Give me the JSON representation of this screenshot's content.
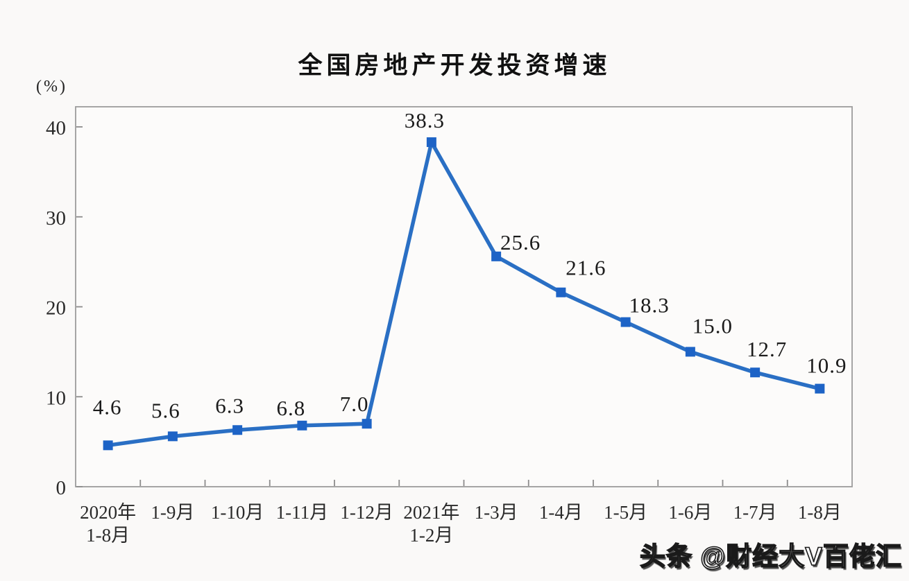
{
  "page": {
    "title": "全国房地产开发投资增速",
    "y_axis_unit_label": "(%)",
    "watermark": "头条 @财经大V百佬汇"
  },
  "colors": {
    "series_line": "#2a6fc4",
    "marker_fill": "#1d63c6",
    "plot_border": "#9c9c9c",
    "tick": "#8c8c8c",
    "axis_text": "#2a2a2a",
    "data_label_text": "#1b1b1b",
    "background": "#faf9f8",
    "plot_background": "#fcfbfa",
    "title_text": "#111111",
    "watermark_fill": "#ffffff",
    "watermark_outline": "#1a1a1a"
  },
  "chart_data": {
    "type": "line",
    "title": "全国房地产开发投资增速",
    "ylabel": "(%)",
    "xlabel": "",
    "ylim": [
      0,
      40
    ],
    "yticks": [
      0,
      10,
      20,
      30,
      40
    ],
    "grid": false,
    "legend": null,
    "marker": "square",
    "categories": [
      [
        "2020年",
        "1-8月"
      ],
      [
        "1-9月"
      ],
      [
        "1-10月"
      ],
      [
        "1-11月"
      ],
      [
        "1-12月"
      ],
      [
        "2021年",
        "1-2月"
      ],
      [
        "1-3月"
      ],
      [
        "1-4月"
      ],
      [
        "1-5月"
      ],
      [
        "1-6月"
      ],
      [
        "1-7月"
      ],
      [
        "1-8月"
      ]
    ],
    "values": [
      4.6,
      5.6,
      6.3,
      6.8,
      7.0,
      38.3,
      25.6,
      21.6,
      18.3,
      15.0,
      12.7,
      10.9
    ],
    "data_labels": [
      "4.6",
      "5.6",
      "6.3",
      "6.8",
      "7.0",
      "38.3",
      "25.6",
      "21.6",
      "18.3",
      "15.0",
      "12.7",
      "10.9"
    ]
  }
}
